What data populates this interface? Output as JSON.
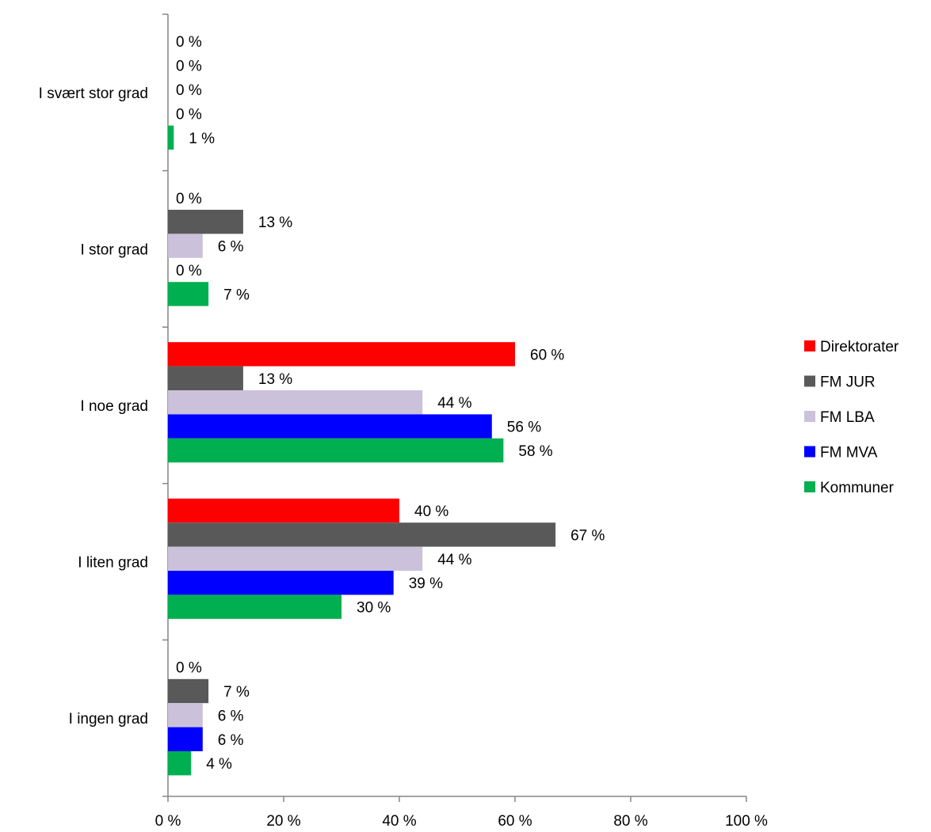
{
  "chart_data": {
    "type": "bar",
    "orientation": "horizontal",
    "categories": [
      "I svært stor grad",
      "I stor grad",
      "I noe grad",
      "I liten grad",
      "I ingen grad"
    ],
    "series": [
      {
        "name": "Direktorater",
        "color": "#ff0000",
        "values": [
          0,
          0,
          60,
          40,
          0
        ]
      },
      {
        "name": "FM JUR",
        "color": "#595959",
        "values": [
          0,
          13,
          13,
          67,
          7
        ]
      },
      {
        "name": "FM LBA",
        "color": "#ccc1da",
        "values": [
          0,
          6,
          44,
          44,
          6
        ]
      },
      {
        "name": "FM MVA",
        "color": "#0000ff",
        "values": [
          0,
          0,
          56,
          39,
          6
        ]
      },
      {
        "name": "Kommuner",
        "color": "#00b050",
        "values": [
          1,
          7,
          58,
          30,
          4
        ]
      }
    ],
    "data_labels": [
      [
        "0 %",
        "0 %",
        "0 %",
        "0 %",
        "1 %"
      ],
      [
        "0 %",
        "13 %",
        "6 %",
        "0 %",
        "7 %"
      ],
      [
        "60 %",
        "13 %",
        "44 %",
        "56 %",
        "58 %"
      ],
      [
        "40 %",
        "67 %",
        "44 %",
        "39 %",
        "30 %"
      ],
      [
        "0 %",
        "7 %",
        "6 %",
        "6 %",
        "4 %"
      ]
    ],
    "xlim": [
      0,
      100
    ],
    "xticks": [
      "0 %",
      "20 %",
      "40 %",
      "60 %",
      "80 %",
      "100 %"
    ],
    "title": "",
    "xlabel": "",
    "ylabel": "",
    "grid": false,
    "legend": "right",
    "axis_color": "#868686"
  }
}
